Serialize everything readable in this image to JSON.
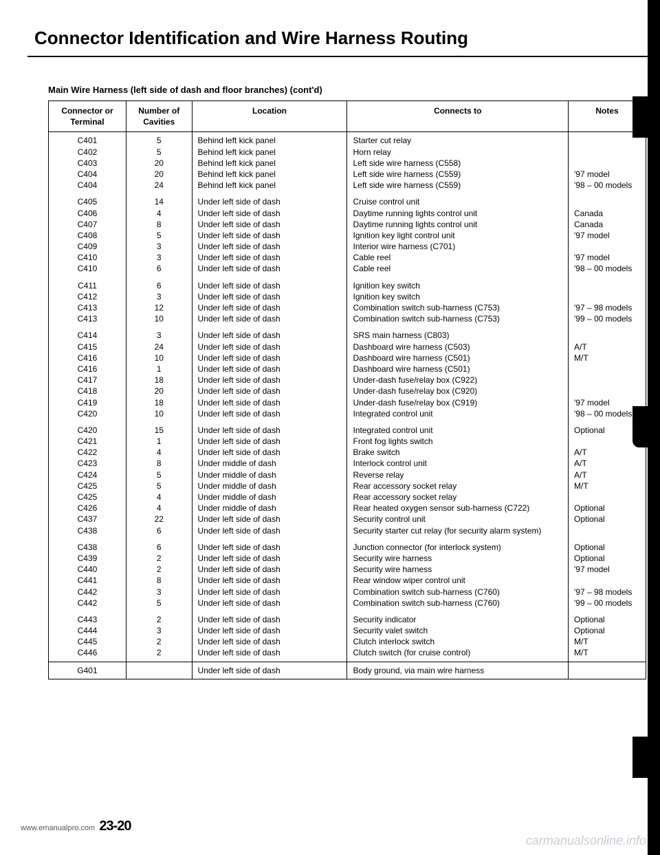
{
  "page": {
    "title": "Connector Identification and Wire Harness Routing",
    "subtitle": "Main Wire Harness (left side of dash and floor branches) (cont'd)",
    "page_number": "23-20",
    "site_left": "www.emanualpro.com",
    "site_right": "carmanualsonline.info"
  },
  "table": {
    "headers": {
      "c1": "Connector or Terminal",
      "c2": "Number of Cavities",
      "c3": "Location",
      "c4": "Connects to",
      "c5": "Notes"
    },
    "rows": [
      {
        "t": "C401",
        "n": "5",
        "loc": "Behind left kick panel",
        "con": "Starter cut relay",
        "note": ""
      },
      {
        "t": "C402",
        "n": "5",
        "loc": "Behind left kick panel",
        "con": "Horn relay",
        "note": ""
      },
      {
        "t": "C403",
        "n": "20",
        "loc": "Behind left kick panel",
        "con": "Left side wire harness (C558)",
        "note": ""
      },
      {
        "t": "C404",
        "n": "20",
        "loc": "Behind left kick panel",
        "con": "Left side wire harness (C559)",
        "note": "'97 model"
      },
      {
        "t": "C404",
        "n": "24",
        "loc": "Behind left kick panel",
        "con": "Left side wire harness (C559)",
        "note": "'98 – 00 models"
      },
      {
        "gap": true
      },
      {
        "t": "C405",
        "n": "14",
        "loc": "Under left side of dash",
        "con": "Cruise control unit",
        "note": ""
      },
      {
        "t": "C406",
        "n": "4",
        "loc": "Under left side of dash",
        "con": "Daytime running lights control unit",
        "note": "Canada"
      },
      {
        "t": "C407",
        "n": "8",
        "loc": "Under left side of dash",
        "con": "Daytime running lights control unit",
        "note": "Canada"
      },
      {
        "t": "C408",
        "n": "5",
        "loc": "Under left side of dash",
        "con": "Ignition key light control unit",
        "note": "'97 model"
      },
      {
        "t": "C409",
        "n": "3",
        "loc": "Under left side of dash",
        "con": "Interior wire harness (C701)",
        "note": ""
      },
      {
        "t": "C410",
        "n": "3",
        "loc": "Under left side of dash",
        "con": "Cable reel",
        "note": "'97 model"
      },
      {
        "t": "C410",
        "n": "6",
        "loc": "Under left side of dash",
        "con": "Cable reel",
        "note": "'98 – 00 models"
      },
      {
        "gap": true
      },
      {
        "t": "C411",
        "n": "6",
        "loc": "Under left side of dash",
        "con": "Ignition key switch",
        "note": ""
      },
      {
        "t": "C412",
        "n": "3",
        "loc": "Under left side of dash",
        "con": "Ignition key switch",
        "note": ""
      },
      {
        "t": "C413",
        "n": "12",
        "loc": "Under left side of dash",
        "con": "Combination switch sub-harness (C753)",
        "note": "'97 – 98 models"
      },
      {
        "t": "C413",
        "n": "10",
        "loc": "Under left side of dash",
        "con": "Combination switch sub-harness (C753)",
        "note": "'99 – 00 models"
      },
      {
        "gap": true
      },
      {
        "t": "C414",
        "n": "3",
        "loc": "Under left side of dash",
        "con": "SRS main harness (C803)",
        "note": ""
      },
      {
        "t": "C415",
        "n": "24",
        "loc": "Under left side of dash",
        "con": "Dashboard wire harness (C503)",
        "note": "A/T"
      },
      {
        "t": "C416",
        "n": "10",
        "loc": "Under left side of dash",
        "con": "Dashboard wire harness (C501)",
        "note": "M/T"
      },
      {
        "t": "C416",
        "n": "1",
        "loc": "Under left side of dash",
        "con": "Dashboard wire harness (C501)",
        "note": ""
      },
      {
        "t": "C417",
        "n": "18",
        "loc": "Under left side of dash",
        "con": "Under-dash fuse/relay box (C922)",
        "note": ""
      },
      {
        "t": "C418",
        "n": "20",
        "loc": "Under left side of dash",
        "con": "Under-dash fuse/relay box (C920)",
        "note": ""
      },
      {
        "t": "C419",
        "n": "18",
        "loc": "Under left side of dash",
        "con": "Under-dash fuse/relay box (C919)",
        "note": "'97 model"
      },
      {
        "t": "C420",
        "n": "10",
        "loc": "Under left side of dash",
        "con": "Integrated control unit",
        "note": "'98 – 00 models"
      },
      {
        "gap": true
      },
      {
        "t": "C420",
        "n": "15",
        "loc": "Under left side of dash",
        "con": "Integrated control unit",
        "note": "Optional"
      },
      {
        "t": "C421",
        "n": "1",
        "loc": "Under left side of dash",
        "con": "Front fog lights switch",
        "note": ""
      },
      {
        "t": "C422",
        "n": "4",
        "loc": "Under left side of dash",
        "con": "Brake switch",
        "note": "A/T"
      },
      {
        "t": "C423",
        "n": "8",
        "loc": "Under middle of dash",
        "con": "Interlock control unit",
        "note": "A/T"
      },
      {
        "t": "C424",
        "n": "5",
        "loc": "Under middle of dash",
        "con": "Reverse relay",
        "note": "A/T"
      },
      {
        "t": "C425",
        "n": "5",
        "loc": "Under middle of dash",
        "con": "Rear accessory socket relay",
        "note": "M/T"
      },
      {
        "t": "C425",
        "n": "4",
        "loc": "Under middle of dash",
        "con": "Rear accessory socket relay",
        "note": ""
      },
      {
        "t": "C426",
        "n": "4",
        "loc": "Under middle of dash",
        "con": "Rear heated oxygen sensor sub-harness (C722)",
        "note": "Optional"
      },
      {
        "t": "C437",
        "n": "22",
        "loc": "Under left side of dash",
        "con": "Security control unit",
        "note": "Optional"
      },
      {
        "t": "C438",
        "n": "6",
        "loc": "Under left side of dash",
        "con": "Security starter cut relay (for security alarm system)",
        "note": ""
      },
      {
        "gap": true
      },
      {
        "t": "C438",
        "n": "6",
        "loc": "Under left side of dash",
        "con": "Junction connector (for interlock system)",
        "note": "Optional"
      },
      {
        "t": "C439",
        "n": "2",
        "loc": "Under left side of dash",
        "con": "Security wire harness",
        "note": "Optional"
      },
      {
        "t": "C440",
        "n": "2",
        "loc": "Under left side of dash",
        "con": "Security wire harness",
        "note": "'97 model"
      },
      {
        "t": "C441",
        "n": "8",
        "loc": "Under left side of dash",
        "con": "Rear window wiper control unit",
        "note": ""
      },
      {
        "t": "C442",
        "n": "3",
        "loc": "Under left side of dash",
        "con": "Combination switch sub-harness (C760)",
        "note": "'97 – 98 models"
      },
      {
        "t": "C442",
        "n": "5",
        "loc": "Under left side of dash",
        "con": "Combination switch sub-harness (C760)",
        "note": "'99 – 00 models"
      },
      {
        "gap": true
      },
      {
        "t": "C443",
        "n": "2",
        "loc": "Under left side of dash",
        "con": "Security indicator",
        "note": "Optional"
      },
      {
        "t": "C444",
        "n": "3",
        "loc": "Under left side of dash",
        "con": "Security valet switch",
        "note": "Optional"
      },
      {
        "t": "C445",
        "n": "2",
        "loc": "Under left side of dash",
        "con": "Clutch interlock switch",
        "note": "M/T"
      },
      {
        "t": "C446",
        "n": "2",
        "loc": "Under left side of dash",
        "con": "Clutch switch (for cruise control)",
        "note": "M/T"
      }
    ],
    "footer_row": {
      "t": "G401",
      "n": "",
      "loc": "Under left side of dash",
      "con": "Body ground, via main wire harness",
      "note": ""
    }
  }
}
